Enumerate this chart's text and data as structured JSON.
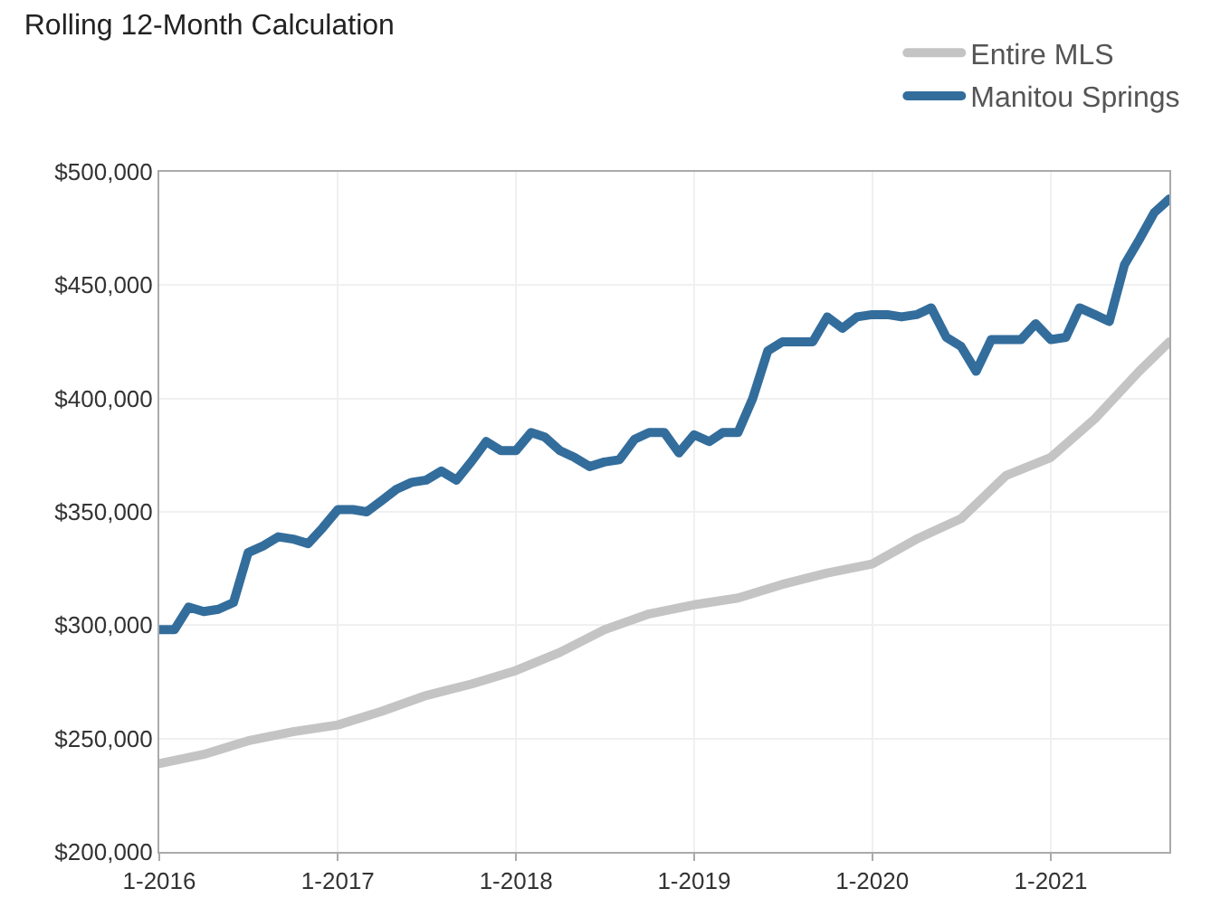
{
  "chart_data": {
    "type": "line",
    "title": "Rolling 12-Month Calculation",
    "x": [
      "2016-01",
      "2016-02",
      "2016-03",
      "2016-04",
      "2016-05",
      "2016-06",
      "2016-07",
      "2016-08",
      "2016-09",
      "2016-10",
      "2016-11",
      "2016-12",
      "2017-01",
      "2017-02",
      "2017-03",
      "2017-04",
      "2017-05",
      "2017-06",
      "2017-07",
      "2017-08",
      "2017-09",
      "2017-10",
      "2017-11",
      "2017-12",
      "2018-01",
      "2018-02",
      "2018-03",
      "2018-04",
      "2018-05",
      "2018-06",
      "2018-07",
      "2018-08",
      "2018-09",
      "2018-10",
      "2018-11",
      "2018-12",
      "2019-01",
      "2019-02",
      "2019-03",
      "2019-04",
      "2019-05",
      "2019-06",
      "2019-07",
      "2019-08",
      "2019-09",
      "2019-10",
      "2019-11",
      "2019-12",
      "2020-01",
      "2020-02",
      "2020-03",
      "2020-04",
      "2020-05",
      "2020-06",
      "2020-07",
      "2020-08",
      "2020-09",
      "2020-10",
      "2020-11",
      "2020-12",
      "2021-01",
      "2021-02",
      "2021-03",
      "2021-04",
      "2021-05",
      "2021-06",
      "2021-07",
      "2021-08",
      "2021-09"
    ],
    "series": [
      {
        "name": "Entire MLS",
        "color": "#c4c4c4",
        "x": [
          "2016-01",
          "2016-04",
          "2016-07",
          "2016-10",
          "2017-01",
          "2017-04",
          "2017-07",
          "2017-10",
          "2018-01",
          "2018-04",
          "2018-07",
          "2018-10",
          "2019-01",
          "2019-04",
          "2019-07",
          "2019-10",
          "2020-01",
          "2020-04",
          "2020-07",
          "2020-10",
          "2021-01",
          "2021-04",
          "2021-07",
          "2021-09"
        ],
        "values": [
          239000,
          243000,
          249000,
          253000,
          256000,
          262000,
          269000,
          274000,
          280000,
          288000,
          298000,
          305000,
          309000,
          312000,
          318000,
          323000,
          327000,
          338000,
          347000,
          366000,
          374000,
          391000,
          412000,
          425000
        ]
      },
      {
        "name": "Manitou Springs",
        "color": "#336d9c",
        "values": [
          298000,
          298000,
          308000,
          306000,
          307000,
          310000,
          332000,
          335000,
          339000,
          338000,
          336000,
          343000,
          351000,
          351000,
          350000,
          355000,
          360000,
          363000,
          364000,
          368000,
          364000,
          372000,
          381000,
          377000,
          377000,
          385000,
          383000,
          377000,
          374000,
          370000,
          372000,
          373000,
          382000,
          385000,
          385000,
          376000,
          384000,
          381000,
          385000,
          385000,
          400000,
          421000,
          425000,
          425000,
          425000,
          436000,
          431000,
          436000,
          437000,
          437000,
          436000,
          437000,
          440000,
          427000,
          423000,
          412000,
          426000,
          426000,
          426000,
          433000,
          426000,
          427000,
          440000,
          437000,
          434000,
          459000,
          470000,
          482000,
          488000
        ]
      }
    ],
    "xlim": [
      "2016-01",
      "2021-09"
    ],
    "xticks": [
      {
        "value": "2016-01",
        "label": "1-2016"
      },
      {
        "value": "2017-01",
        "label": "1-2017"
      },
      {
        "value": "2018-01",
        "label": "1-2018"
      },
      {
        "value": "2019-01",
        "label": "1-2019"
      },
      {
        "value": "2020-01",
        "label": "1-2020"
      },
      {
        "value": "2021-01",
        "label": "1-2021"
      }
    ],
    "ylim": [
      200000,
      500000
    ],
    "yticks": [
      {
        "value": 200000,
        "label": "$200,000"
      },
      {
        "value": 250000,
        "label": "$250,000"
      },
      {
        "value": 300000,
        "label": "$300,000"
      },
      {
        "value": 350000,
        "label": "$350,000"
      },
      {
        "value": 400000,
        "label": "$400,000"
      },
      {
        "value": 450000,
        "label": "$450,000"
      },
      {
        "value": 500000,
        "label": "$500,000"
      }
    ],
    "grid": true,
    "legend": "top right",
    "marker": "none",
    "line_style": "solid"
  }
}
